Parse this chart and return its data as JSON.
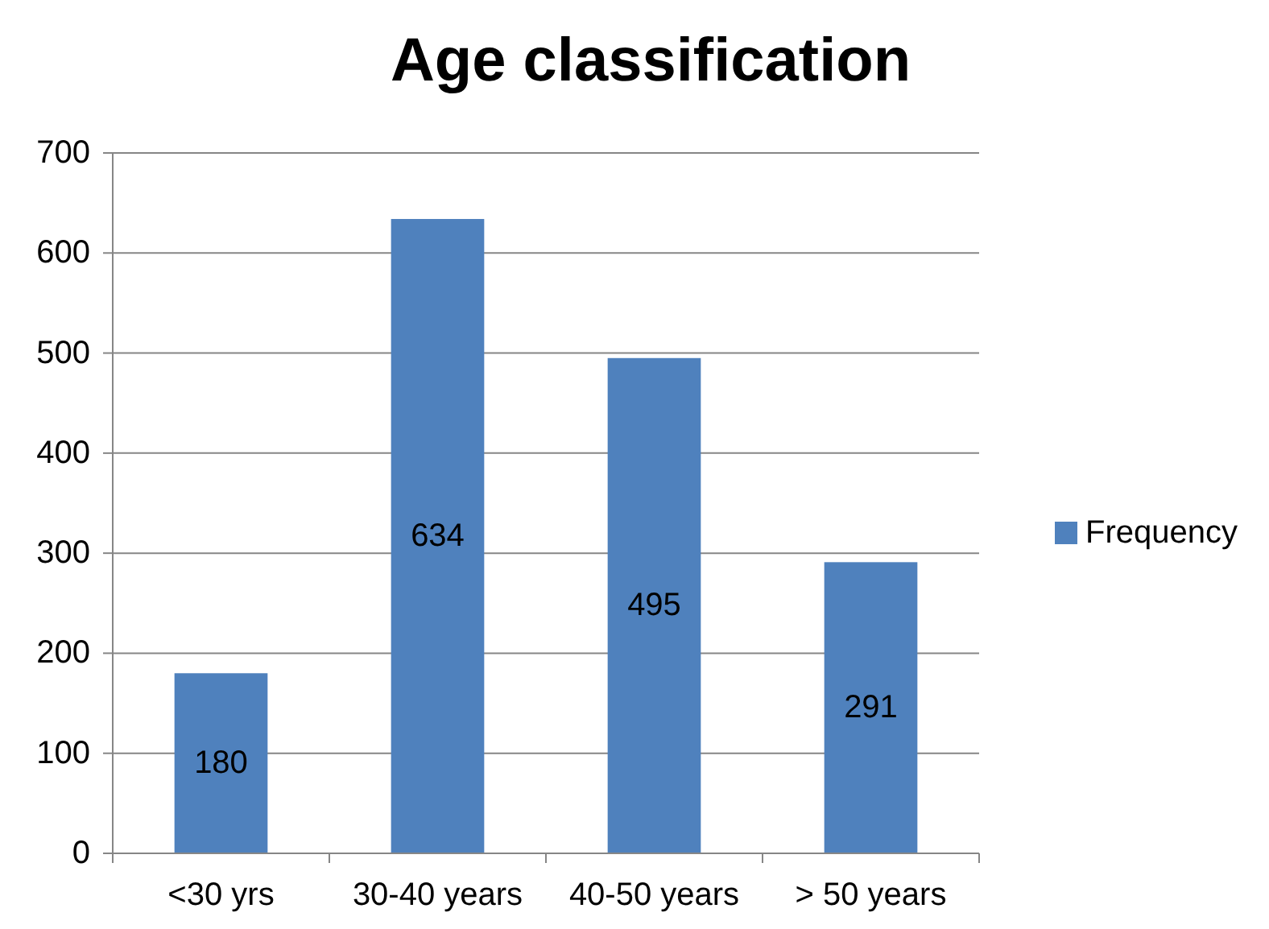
{
  "chart_data": {
    "type": "bar",
    "title": "Age classification",
    "categories": [
      "<30 yrs",
      "30-40 years",
      "40-50 years",
      "> 50 years"
    ],
    "series": [
      {
        "name": "Frequency",
        "color": "#4f81bd",
        "values": [
          180,
          634,
          495,
          291
        ]
      }
    ],
    "ylim": [
      0,
      700
    ],
    "yticks": [
      0,
      100,
      200,
      300,
      400,
      500,
      600,
      700
    ],
    "grid": "y",
    "legend": "right",
    "data_labels": true
  }
}
